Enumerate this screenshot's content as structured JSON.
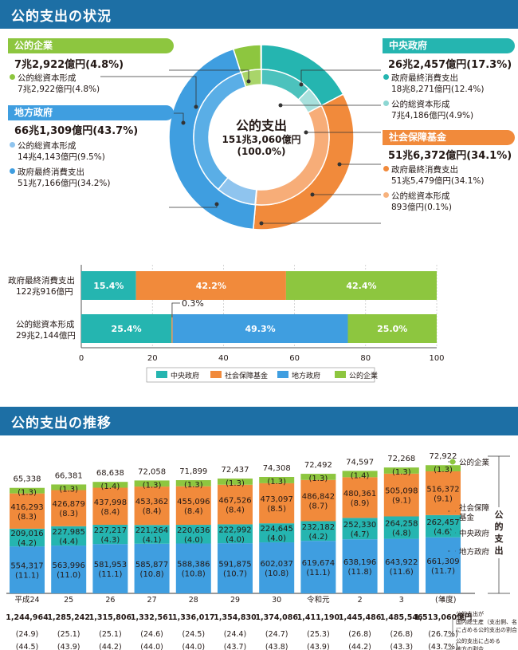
{
  "sections": {
    "top_title": "公的支出の状況",
    "bottom_title": "公的支出の推移"
  },
  "donut": {
    "center_title": "公的支出",
    "center_value": "151兆3,060億円",
    "center_pct": "(100.0%)",
    "groups": [
      {
        "name": "公的企業",
        "total": "7兆2,922億円(4.8%)",
        "color": "#8dc63f",
        "items": [
          {
            "label": "公的総資本形成",
            "value": "7兆2,922億円(4.8%)"
          }
        ]
      },
      {
        "name": "地方政府",
        "total": "66兆1,309億円(43.7%)",
        "color": "#3f9ee0",
        "items": [
          {
            "label": "公的総資本形成",
            "value": "14兆4,143億円(9.5%)"
          },
          {
            "label": "政府最終消費支出",
            "value": "51兆7,166億円(34.2%)"
          }
        ]
      },
      {
        "name": "中央政府",
        "total": "26兆2,457億円(17.3%)",
        "color": "#25b5b0",
        "items": [
          {
            "label": "政府最終消費支出",
            "value": "18兆8,271億円(12.4%)"
          },
          {
            "label": "公的総資本形成",
            "value": "7兆4,186億円(4.9%)"
          }
        ]
      },
      {
        "name": "社会保障基金",
        "total": "51兆6,372億円(34.1%)",
        "color": "#f18a3b",
        "items": [
          {
            "label": "政府最終消費支出",
            "value": "51兆5,479億円(34.1%)"
          },
          {
            "label": "公的総資本形成",
            "value": "893億円(0.1%)"
          }
        ]
      }
    ],
    "inner_pcts": [
      12.4,
      4.9,
      34.1,
      0.1,
      9.5,
      34.2,
      4.8
    ],
    "outer_pcts": [
      17.3,
      34.1,
      43.7,
      4.8
    ]
  },
  "hbar": {
    "rows": [
      {
        "label1": "政府最終消費支出",
        "label2": "122兆916億円",
        "values": [
          15.4,
          42.2,
          0,
          42.4
        ],
        "texts": [
          "15.4%",
          "42.2%",
          "",
          "42.4%"
        ]
      },
      {
        "label1": "公的総資本形成",
        "label2": "29兆2,144億円",
        "values": [
          25.4,
          0.3,
          49.3,
          25.0
        ],
        "texts": [
          "25.4%",
          "",
          "49.3%",
          "25.0%"
        ]
      }
    ],
    "callout": "0.3%",
    "ticks": [
      "0",
      "20",
      "40",
      "60",
      "80",
      "100"
    ],
    "legend": [
      "中央政府",
      "社会保障基金",
      "地方政府",
      "公的企業"
    ],
    "colors": [
      "#25b5b0",
      "#f18a3b",
      "#3f9ee0",
      "#8dc63f"
    ]
  },
  "chart_data": {
    "type": "bar",
    "categories": [
      "平成24",
      "25",
      "26",
      "27",
      "28",
      "29",
      "30",
      "令和元",
      "2",
      "3",
      "4"
    ],
    "unit": "億円",
    "year_label": "(年度)",
    "series": [
      {
        "name": "地方政府",
        "values": [
          554317,
          563996,
          581953,
          585877,
          588386,
          591875,
          602037,
          619674,
          638196,
          643922,
          661309
        ],
        "shares": [
          "(11.1)",
          "(11.0)",
          "(11.1)",
          "(10.8)",
          "(10.8)",
          "(10.7)",
          "(10.8)",
          "(11.1)",
          "(11.8)",
          "(11.6)",
          "(11.7)"
        ]
      },
      {
        "name": "中央政府",
        "values": [
          209016,
          227985,
          227217,
          221264,
          220636,
          222992,
          224645,
          232182,
          252330,
          264258,
          262457
        ],
        "shares": [
          "(4.2)",
          "(4.4)",
          "(4.3)",
          "(4.1)",
          "(4.0)",
          "(4.0)",
          "(4.0)",
          "(4.2)",
          "(4.7)",
          "(4.8)",
          "(4.6)"
        ]
      },
      {
        "name": "社会保障基金",
        "values": [
          416293,
          426879,
          437998,
          453362,
          455096,
          467526,
          473097,
          486842,
          480361,
          505098,
          516372
        ],
        "shares": [
          "(8.3)",
          "(8.3)",
          "(8.4)",
          "(8.4)",
          "(8.4)",
          "(8.4)",
          "(8.5)",
          "(8.7)",
          "(8.9)",
          "(9.1)",
          "(9.1)"
        ]
      },
      {
        "name": "公的企業",
        "values": [
          65338,
          66381,
          68638,
          72058,
          71899,
          72437,
          74308,
          72492,
          74597,
          72268,
          72922
        ],
        "shares": [
          "(1.3)",
          "(1.3)",
          "(1.4)",
          "(1.3)",
          "(1.3)",
          "(1.3)",
          "(1.3)",
          "(1.3)",
          "(1.4)",
          "(1.3)",
          "(1.3)"
        ]
      }
    ],
    "totals": [
      "1,244,964",
      "1,285,242",
      "1,315,806",
      "1,332,561",
      "1,336,017",
      "1,354,830",
      "1,374,086",
      "1,411,190",
      "1,445,486",
      "1,485,546",
      "1,513,060億円"
    ],
    "gdp_ratio": [
      "(24.9)",
      "(25.1)",
      "(25.1)",
      "(24.6)",
      "(24.5)",
      "(24.4)",
      "(24.7)",
      "(25.3)",
      "(26.8)",
      "(26.8)",
      "(26.7%)"
    ],
    "domestic_share": [
      "(44.5)",
      "(43.9)",
      "(44.2)",
      "(44.0)",
      "(44.0)",
      "(43.7)",
      "(43.8)",
      "(43.9)",
      "(44.2)",
      "(43.3)",
      "(43.7%)"
    ],
    "legend": [
      "公的企業",
      "社会保障基金",
      "中央政府",
      "地方政府"
    ],
    "side_label": [
      "公",
      "的",
      "支",
      "出"
    ],
    "note1": [
      "公的支出が",
      "国内総生産（支出側、名目）",
      "に占める公的支出の割合"
    ],
    "note2": [
      "公的支出に占める",
      "地方の割合"
    ],
    "colors": {
      "地方政府": "#3f9ee0",
      "中央政府": "#25b5b0",
      "社会保障基金": "#f18a3b",
      "公的企業": "#8dc63f"
    }
  }
}
